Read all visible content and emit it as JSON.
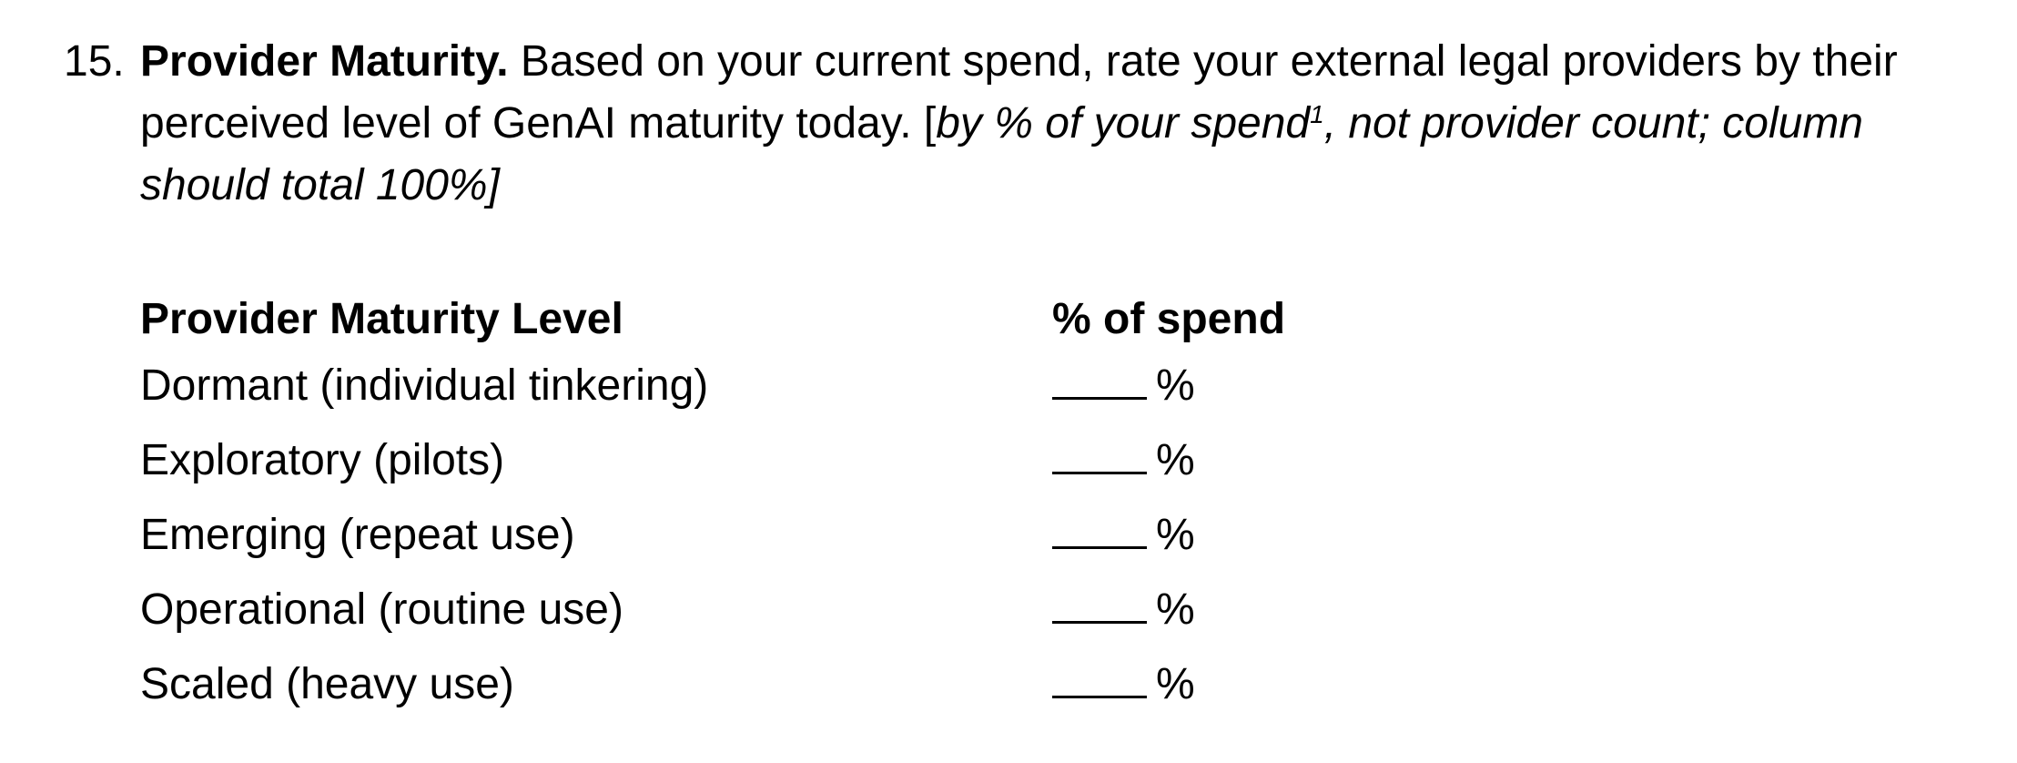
{
  "question": {
    "number": "15.",
    "title": "Provider Maturity.",
    "text": " Based on your current spend, rate your external legal providers by their perceived level of GenAI maturity today. [",
    "note_part1": "by % of your spend",
    "footnote": "1",
    "note_part2": ", not provider count; column should total 100%]"
  },
  "table": {
    "headers": {
      "level": "Provider Maturity Level",
      "spend": "% of spend"
    },
    "rows": [
      {
        "level": "Dormant (individual tinkering)",
        "unit": "%"
      },
      {
        "level": "Exploratory (pilots)",
        "unit": "%"
      },
      {
        "level": "Emerging (repeat use)",
        "unit": "%"
      },
      {
        "level": "Operational (routine use)",
        "unit": "%"
      },
      {
        "level": "Scaled (heavy use)",
        "unit": "%"
      }
    ]
  }
}
